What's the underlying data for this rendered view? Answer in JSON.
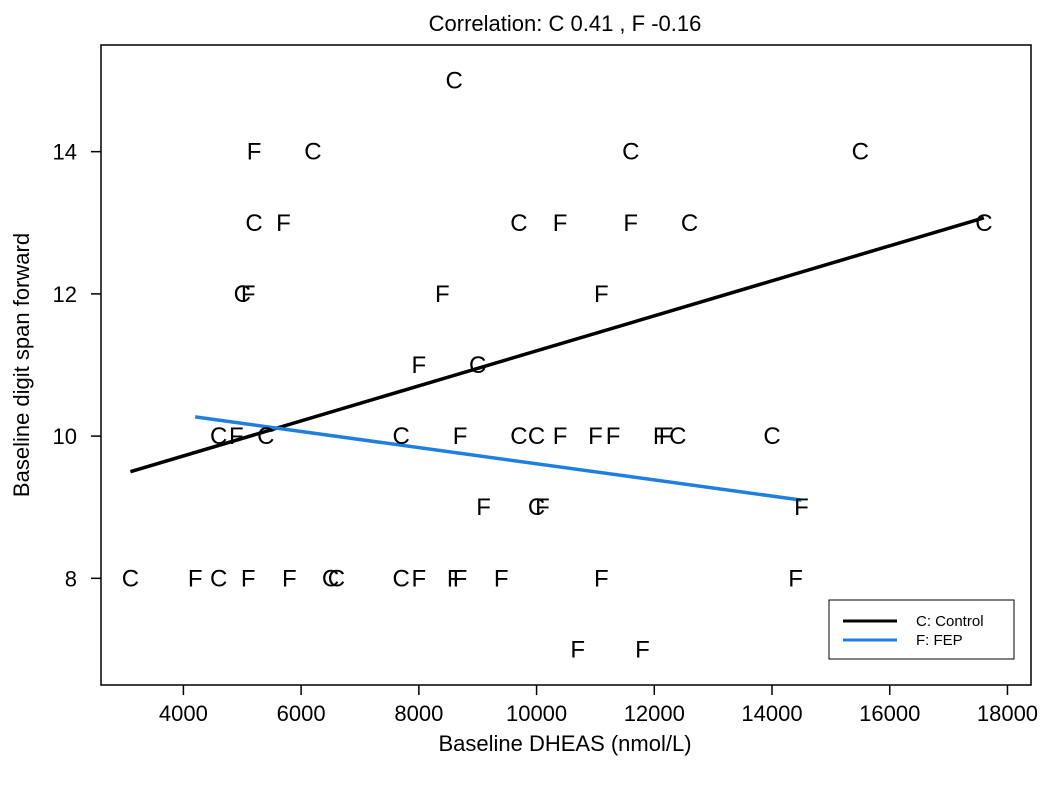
{
  "chart_data": {
    "type": "scatter",
    "title": "Correlation: C 0.41 , F -0.16",
    "xlabel": "Baseline DHEAS (nmol/L)",
    "ylabel": "Baseline digit span forward",
    "xlim": [
      2600,
      18400
    ],
    "ylim": [
      6.5,
      15.5
    ],
    "xticks": [
      4000,
      6000,
      8000,
      10000,
      12000,
      14000,
      16000,
      18000
    ],
    "yticks": [
      8,
      10,
      12,
      14
    ],
    "xtick_labels": [
      "4000",
      "6000",
      "8000",
      "10000",
      "12000",
      "14000",
      "16000",
      "18000"
    ],
    "ytick_labels": [
      "8",
      "10",
      "12",
      "14"
    ],
    "grid": false,
    "legend_position": "bottom-right",
    "series": [
      {
        "name": "C: Control",
        "marker": "C",
        "color": "#000000",
        "points": [
          [
            3100,
            8
          ],
          [
            4600,
            8
          ],
          [
            6500,
            8
          ],
          [
            6600,
            8
          ],
          [
            7700,
            8
          ],
          [
            4600,
            10
          ],
          [
            5400,
            10
          ],
          [
            7700,
            10
          ],
          [
            9700,
            10
          ],
          [
            10000,
            10
          ],
          [
            12400,
            10
          ],
          [
            14000,
            10
          ],
          [
            9000,
            11
          ],
          [
            5000,
            12
          ],
          [
            5200,
            13
          ],
          [
            9700,
            13
          ],
          [
            12600,
            13
          ],
          [
            17600,
            13
          ],
          [
            6200,
            14
          ],
          [
            11600,
            14
          ],
          [
            15500,
            14
          ],
          [
            8600,
            15
          ],
          [
            10000,
            9
          ]
        ],
        "fit": [
          [
            3100,
            9.5
          ],
          [
            17600,
            13.07
          ]
        ]
      },
      {
        "name": "F: FEP",
        "marker": "F",
        "color": "#1f7fe0",
        "points": [
          [
            4200,
            8
          ],
          [
            5100,
            8
          ],
          [
            5800,
            8
          ],
          [
            8000,
            8
          ],
          [
            8600,
            8
          ],
          [
            8700,
            8
          ],
          [
            9400,
            8
          ],
          [
            11100,
            8
          ],
          [
            14400,
            8
          ],
          [
            10700,
            7
          ],
          [
            11800,
            7
          ],
          [
            9100,
            9
          ],
          [
            10100,
            9
          ],
          [
            14500,
            9
          ],
          [
            4900,
            10
          ],
          [
            8700,
            10
          ],
          [
            10400,
            10
          ],
          [
            11000,
            10
          ],
          [
            11300,
            10
          ],
          [
            12100,
            10
          ],
          [
            12200,
            10
          ],
          [
            8000,
            11
          ],
          [
            5100,
            12
          ],
          [
            8400,
            12
          ],
          [
            11100,
            12
          ],
          [
            5700,
            13
          ],
          [
            10400,
            13
          ],
          [
            11600,
            13
          ],
          [
            5200,
            14
          ]
        ],
        "fit": [
          [
            4200,
            10.27
          ],
          [
            14500,
            9.1
          ]
        ]
      }
    ]
  }
}
